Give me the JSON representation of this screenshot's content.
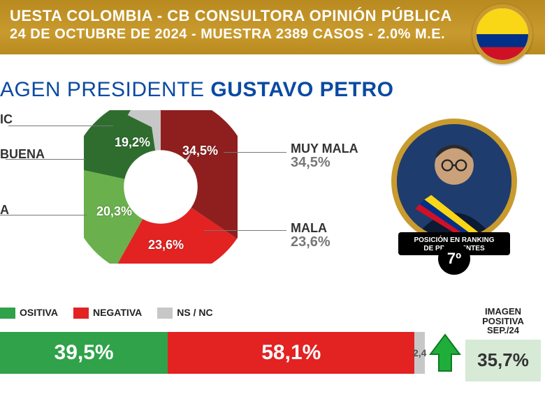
{
  "header": {
    "line1": "UESTA COLOMBIA - CB CONSULTORA OPINIÓN PÚBLICA",
    "line2": "24 DE OCTUBRE DE 2024 - MUESTRA 2389 CASOS - 2.0% M.E.",
    "band_gradient_top": "#b88a1f",
    "band_gradient_mid": "#c99a2e",
    "flag": {
      "yellow": "#f9d616",
      "blue": "#003087",
      "red": "#ce1126"
    }
  },
  "title": {
    "prefix": "AGEN PRESIDENTE ",
    "name": "GUSTAVO PETRO",
    "color": "#0b4aa2",
    "fontsize": 30
  },
  "donut": {
    "type": "donut",
    "center_hole_ratio": 0.42,
    "slices": [
      {
        "key": "muy_mala",
        "label": "MUY MALA",
        "value": 34.5,
        "color": "#8f1f1f",
        "text_color": "#ffffff"
      },
      {
        "key": "mala",
        "label": "MALA",
        "value": 23.6,
        "color": "#e32222",
        "text_color": "#ffffff"
      },
      {
        "key": "buena",
        "label": "A",
        "value": 20.3,
        "color": "#6ab04c",
        "text_color": "#ffffff"
      },
      {
        "key": "muy_buena",
        "label": "BUENA",
        "value": 19.2,
        "color": "#2f6d2f",
        "text_color": "#ffffff"
      },
      {
        "key": "nsnc",
        "label": "IC",
        "value": 2.4,
        "color": "#c7c7c7",
        "text_color": "#555555"
      }
    ],
    "percent_labels": {
      "muy_mala": "34,5%",
      "mala": "23,6%",
      "buena": "20,3%",
      "muy_buena": "19,2%"
    },
    "side_labels": {
      "right_top": {
        "title": "MUY MALA",
        "pct": "34,5%"
      },
      "right_bot": {
        "title": "MALA",
        "pct": "23,6%"
      },
      "left_top": {
        "title": "IC",
        "pct": ""
      },
      "left_mid": {
        "title": "BUENA",
        "pct": ""
      },
      "left_bot": {
        "title": "A",
        "pct": ""
      }
    },
    "leader_color": "#888888"
  },
  "photo": {
    "ring_color": "#c99a2e",
    "bg": "#1f3c6e",
    "sash": {
      "yellow": "#f9d616",
      "blue": "#003087",
      "red": "#ce1126"
    },
    "rank_text_line1": "POSICIÓN EN RANKING",
    "rank_text_line2": "DE PRESIDENTES",
    "rank_value": "7º"
  },
  "legend": {
    "items": [
      {
        "label": "OSITIVA",
        "color": "#2fa24a"
      },
      {
        "label": "NEGATIVA",
        "color": "#e32222"
      },
      {
        "label": "NS / NC",
        "color": "#c7c7c7"
      }
    ]
  },
  "summary_bar": {
    "segments": [
      {
        "key": "positiva",
        "value": 39.5,
        "label": "39,5%",
        "color": "#2fa24a",
        "text_color": "#ffffff"
      },
      {
        "key": "negativa",
        "value": 58.1,
        "label": "58,1%",
        "color": "#e32222",
        "text_color": "#ffffff"
      },
      {
        "key": "nsnc",
        "value": 2.4,
        "label": "2,4",
        "color": "#c7c7c7",
        "text_color": "#555555"
      }
    ],
    "trend": {
      "direction": "up",
      "fill": "#1fae3a",
      "stroke": "#0e7a24"
    }
  },
  "previous": {
    "title_line1": "IMAGEN",
    "title_line2": "POSITIVA",
    "title_line3": "SEP./24",
    "value": "35,7%",
    "box_bg": "#d6ead6"
  }
}
